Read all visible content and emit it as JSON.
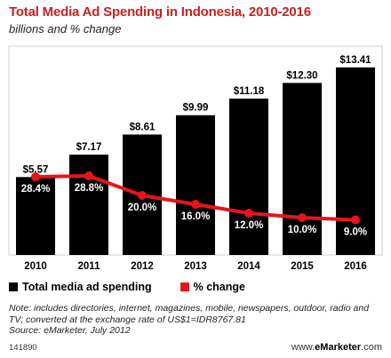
{
  "header": {
    "title": "Total Media Ad Spending in Indonesia, 2010-2016",
    "subtitle": "billions and % change"
  },
  "chart_data": {
    "type": "bar",
    "title": "Total Media Ad Spending in Indonesia, 2010-2016",
    "subtitle": "billions and % change",
    "categories": [
      "2010",
      "2011",
      "2012",
      "2013",
      "2014",
      "2015",
      "2016"
    ],
    "series": [
      {
        "name": "Total media ad spending",
        "type": "bar",
        "values": [
          5.57,
          7.17,
          8.61,
          9.99,
          11.18,
          12.3,
          13.41
        ],
        "labels": [
          "$5.57",
          "$7.17",
          "$8.61",
          "$9.99",
          "$11.18",
          "$12.30",
          "$13.41"
        ]
      },
      {
        "name": "% change",
        "type": "line",
        "values": [
          28.4,
          28.8,
          20.0,
          16.0,
          12.0,
          10.0,
          9.0
        ],
        "labels": [
          "28.4%",
          "28.8%",
          "20.0%",
          "16.0%",
          "12.0%",
          "10.0%",
          "9.0%"
        ]
      }
    ],
    "colors": {
      "bar": "#000000",
      "line": "#e8141b",
      "title": "#cc1f1f"
    },
    "grid": false,
    "legend": "bottom-left"
  },
  "legend": {
    "bar_label": "Total media ad spending",
    "line_label": "% change"
  },
  "footer": {
    "note": "Note: includes directories, internet, magazines, mobile, newspapers, outdoor, radio and TV; converted at the exchange rate of US$1=IDR8767.81",
    "source": "Source: eMarketer, July 2012",
    "chart_id": "141890",
    "brand_prefix": "www.",
    "brand_name": "eMarketer",
    "brand_suffix": ".com"
  }
}
